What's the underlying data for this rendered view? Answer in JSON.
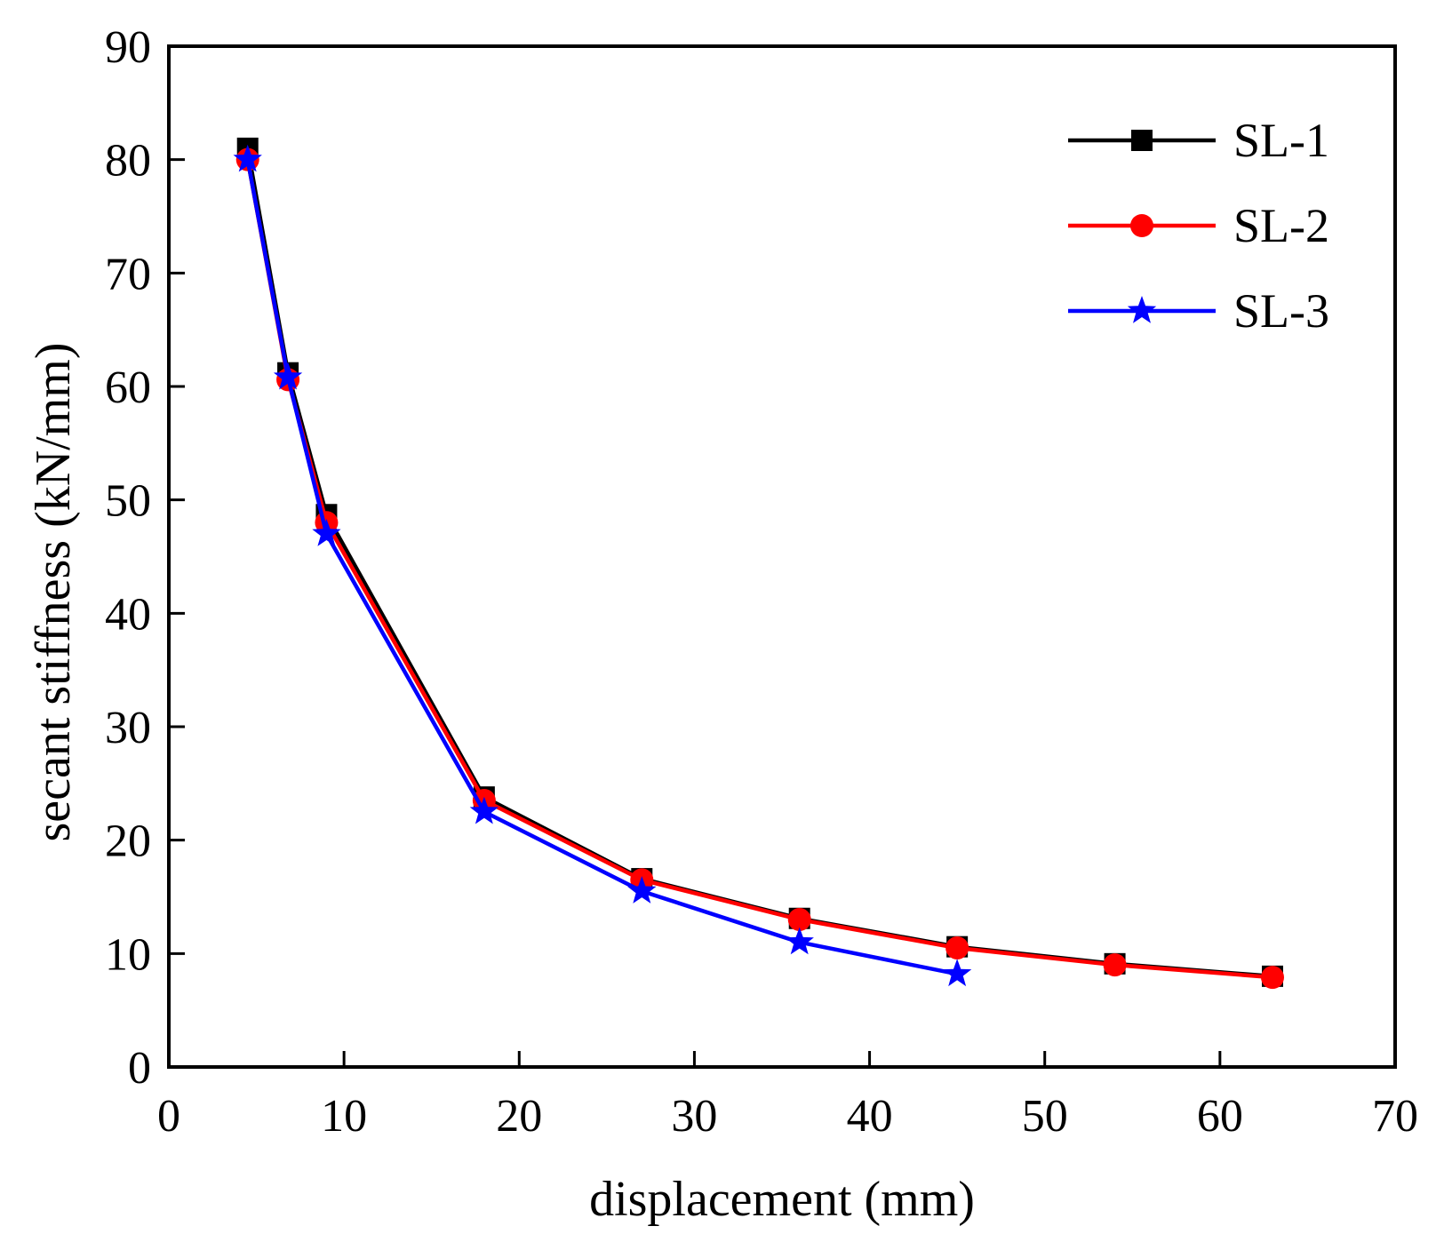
{
  "chart_data": {
    "type": "line",
    "title": "",
    "xlabel": "displacement (mm)",
    "ylabel": "secant stiffness (kN/mm)",
    "xlim": [
      0,
      70
    ],
    "ylim": [
      0,
      90
    ],
    "xticks": [
      0,
      10,
      20,
      30,
      40,
      50,
      60,
      70
    ],
    "yticks": [
      0,
      10,
      20,
      30,
      40,
      50,
      60,
      70,
      80,
      90
    ],
    "grid": false,
    "legend_position": "top-right",
    "series": [
      {
        "name": "SL-1",
        "color": "#000000",
        "marker": "square",
        "x": [
          4.5,
          6.8,
          9.0,
          18.0,
          27.0,
          36.0,
          45.0,
          54.0,
          63.0
        ],
        "y": [
          81.0,
          61.2,
          48.7,
          23.8,
          16.6,
          13.1,
          10.6,
          9.1,
          8.0
        ]
      },
      {
        "name": "SL-2",
        "color": "#ff0000",
        "marker": "circle",
        "x": [
          4.5,
          6.8,
          9.0,
          18.0,
          27.0,
          36.0,
          45.0,
          54.0,
          63.0
        ],
        "y": [
          80.0,
          60.6,
          48.0,
          23.5,
          16.5,
          13.0,
          10.5,
          9.0,
          7.9
        ]
      },
      {
        "name": "SL-3",
        "color": "#0000ff",
        "marker": "star",
        "x": [
          4.5,
          6.8,
          9.0,
          18.0,
          27.0,
          36.0,
          45.0
        ],
        "y": [
          80.0,
          60.8,
          47.0,
          22.5,
          15.5,
          11.0,
          8.2
        ]
      }
    ]
  }
}
